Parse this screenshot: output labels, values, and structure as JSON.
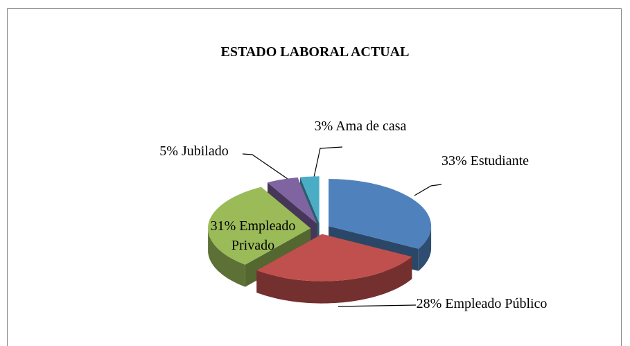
{
  "chart_data": {
    "type": "pie3d",
    "title": "ESTADO LABORAL ACTUAL",
    "categories": [
      "Estudiante",
      "Empleado Público",
      "Empleado Privado",
      "Jubilado",
      "Ama de casa"
    ],
    "values": [
      33,
      28,
      31,
      5,
      3
    ],
    "value_labels": [
      "33%",
      "28%",
      "31%",
      "5%",
      "3%"
    ],
    "colors": [
      "#4f81bd",
      "#c0504d",
      "#9bbb59",
      "#8064a2",
      "#4bacc6"
    ]
  }
}
